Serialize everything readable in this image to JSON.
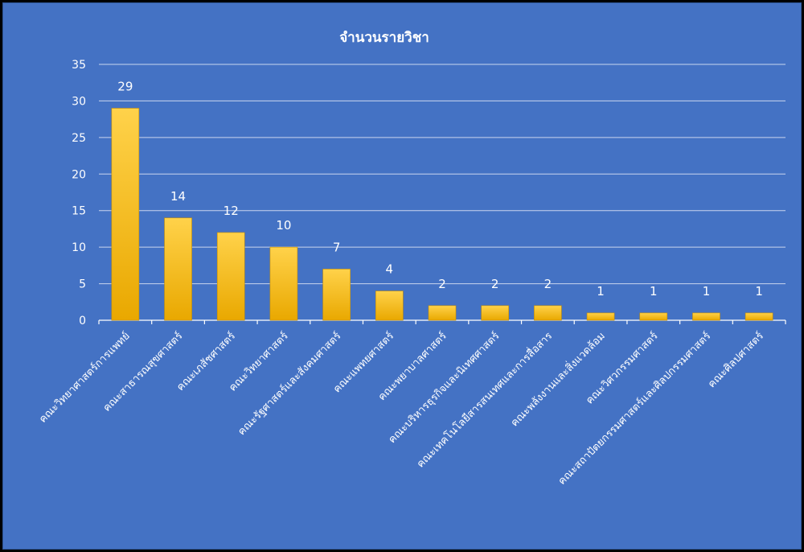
{
  "chart_data": {
    "type": "bar",
    "title": "จำนวนรายวิชา",
    "categories": [
      "คณะวิทยาศาสตร์การแพทย์",
      "คณะสาธารณสุขศาสตร์",
      "คณะเภสัชศาสตร์",
      "คณะวิทยาศาสตร์",
      "คณะรัฐศาสตร์และสังคมศาสตร์",
      "คณะแพทยศาสตร์",
      "คณะพยาบาลศาสตร์",
      "คณะบริหารธุรกิจและนิเทศศาสตร์",
      "คณะเทคโนโลยีสารสนเทศและการสื่อสาร",
      "คณะพลังงานและสิ่งแวดล้อม",
      "คณะวิศวกรรมศาสตร์",
      "คณะสถาปัตยกรรมศาสตร์และศิลปกรรมศาสตร์",
      "คณะศิลปศาสตร์"
    ],
    "values": [
      29,
      14,
      12,
      10,
      7,
      4,
      2,
      2,
      2,
      1,
      1,
      1,
      1
    ],
    "data_labels": [
      "29",
      "14",
      "12",
      "10",
      "7",
      "4",
      "2",
      "2",
      "2",
      "1",
      "1",
      "1",
      "1"
    ],
    "xlabel": "",
    "ylabel": "",
    "ylim": [
      0,
      35
    ],
    "yticks": [
      "0",
      "5",
      "10",
      "15",
      "20",
      "25",
      "30",
      "35"
    ],
    "grid": true,
    "legend": "none",
    "colors": {
      "background": "#4472c4",
      "bar_top": "#ffd24a",
      "bar_bottom": "#e9a800",
      "text": "#ffffff",
      "grid": "#c9d5ee"
    }
  }
}
